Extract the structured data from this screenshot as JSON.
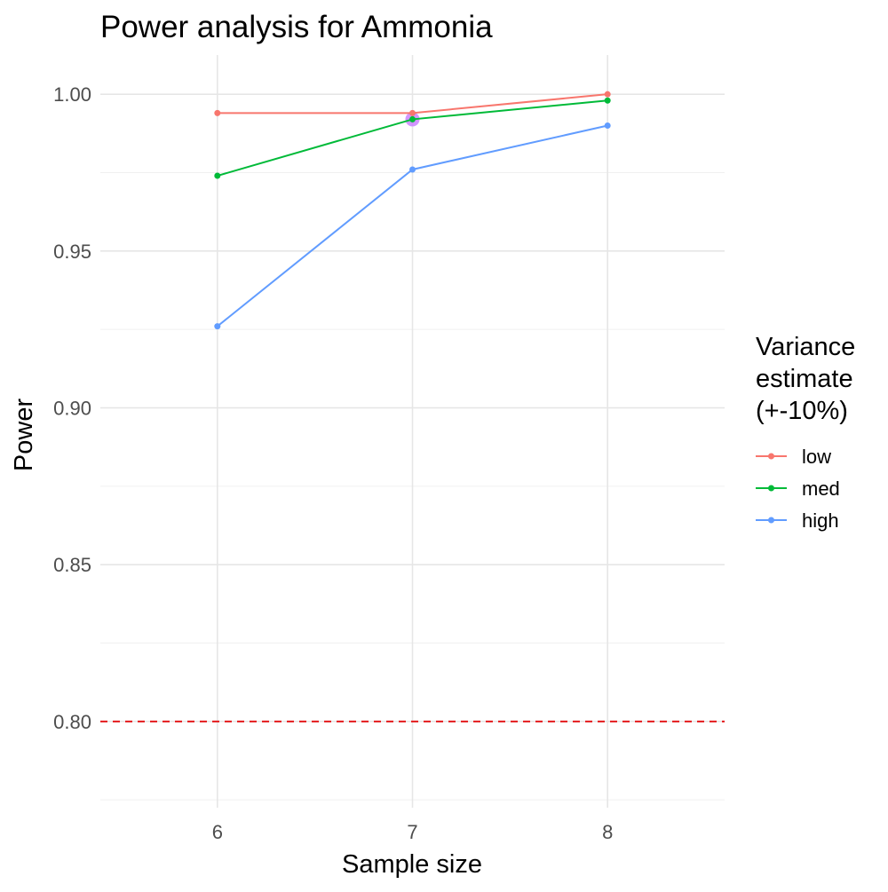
{
  "chart_data": {
    "type": "line",
    "title": "Power analysis for Ammonia",
    "xlabel": "Sample size",
    "ylabel": "Power",
    "x": [
      6,
      7,
      8
    ],
    "xlim": [
      5.4,
      8.6
    ],
    "ylim": [
      0.7725,
      1.0125
    ],
    "x_ticks": [
      6,
      7,
      8
    ],
    "x_tick_labels": [
      "6",
      "7",
      "8"
    ],
    "y_ticks": [
      0.8,
      0.85,
      0.9,
      0.95,
      1.0
    ],
    "y_tick_labels": [
      "0.80",
      "0.85",
      "0.90",
      "0.95",
      "1.00"
    ],
    "y_minor_ticks": [
      0.775,
      0.825,
      0.875,
      0.925,
      0.975
    ],
    "grid": true,
    "legend": {
      "title_lines": [
        "Variance",
        "estimate",
        "(+-10%)"
      ],
      "placement": "right"
    },
    "series": [
      {
        "name": "low",
        "color": "#F8766D",
        "values": [
          0.994,
          0.994,
          1.0
        ]
      },
      {
        "name": "med",
        "color": "#00BA38",
        "values": [
          0.974,
          0.992,
          0.998
        ]
      },
      {
        "name": "high",
        "color": "#619CFF",
        "values": [
          0.926,
          0.976,
          0.99
        ]
      }
    ],
    "reference_line": {
      "y": 0.8,
      "color": "#E41A1C",
      "style": "dashed"
    },
    "highlight_point": {
      "x": 7,
      "y": 0.992,
      "color": "#C77CFF"
    }
  }
}
